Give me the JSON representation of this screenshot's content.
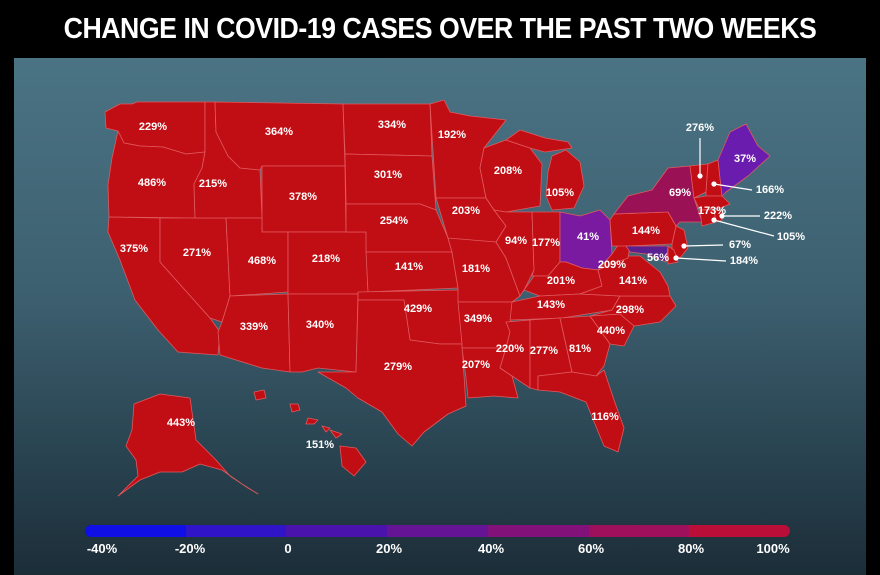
{
  "title": "CHANGE IN COVID-19 CASES OVER THE PAST TWO WEEKS",
  "colors": {
    "state_fill": "#c10d14",
    "state_border": "#e05a5e",
    "ohio_fill": "#7a1aa0",
    "maine_fill": "#6a1cae",
    "newyork_fill": "#9a1155",
    "label": "#ffffff"
  },
  "states": {
    "WA": "229%",
    "OR": "486%",
    "CA": "375%",
    "ID": "215%",
    "NV": "271%",
    "MT": "364%",
    "WY": "378%",
    "UT": "468%",
    "CO": "218%",
    "AZ": "339%",
    "NM": "340%",
    "ND": "334%",
    "SD": "301%",
    "NE": "254%",
    "KS": "141%",
    "OK": "429%",
    "TX": "279%",
    "MN": "192%",
    "IA": "203%",
    "MO": "181%",
    "AR": "349%",
    "LA": "207%",
    "WI": "208%",
    "IL": "94%",
    "MI": "105%",
    "IN": "177%",
    "OH": "41%",
    "KY": "201%",
    "TN": "143%",
    "MS": "220%",
    "AL": "277%",
    "GA": "81%",
    "FL": "116%",
    "SC": "440%",
    "NC": "298%",
    "VA": "141%",
    "WV": "209%",
    "PA": "144%",
    "NY": "69%",
    "VT": "276%",
    "ME": "37%",
    "NH": "166%",
    "MA": "173%",
    "RI": "222%",
    "CT": "105%",
    "NJ": "67%",
    "DE": "184%",
    "MD": "56%",
    "AK": "443%",
    "HI": "151%"
  },
  "legend": {
    "ticks": [
      "-40%",
      "-20%",
      "0",
      "20%",
      "40%",
      "60%",
      "80%",
      "100%"
    ],
    "colors": [
      "#1010e6",
      "#3014c8",
      "#4a14ac",
      "#661496",
      "#82127a",
      "#9e105c",
      "#b80e38"
    ]
  }
}
